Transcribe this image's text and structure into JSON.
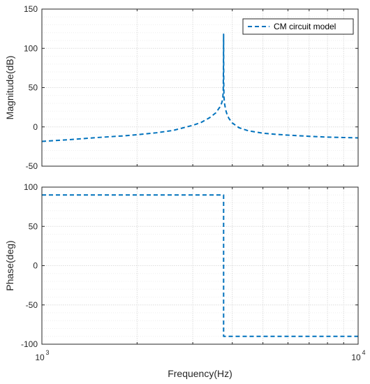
{
  "chart_data": [
    {
      "type": "line",
      "ylabel": "Magnitude(dB)",
      "xscale": "log",
      "xlim": [
        1000,
        10000
      ],
      "ylim": [
        -50,
        150
      ],
      "yticks": [
        -50,
        0,
        50,
        100,
        150
      ],
      "grid": true,
      "minor_grid": true,
      "legend": {
        "placement": "top-right",
        "entries": [
          "CM circuit model"
        ]
      },
      "series": [
        {
          "name": "CM circuit model",
          "color": "#0072BD",
          "style": "dashed",
          "x": [
            1000,
            1200,
            1500,
            1800,
            2000,
            2300,
            2600,
            3000,
            3200,
            3400,
            3550,
            3650,
            3700,
            3730,
            3745,
            3752,
            3755,
            3758,
            3765,
            3780,
            3810,
            3850,
            3900,
            4000,
            4200,
            4500,
            5000,
            5500,
            6000,
            7000,
            8000,
            9000,
            10000
          ],
          "y": [
            -18.5,
            -16.5,
            -13.5,
            -11.5,
            -10,
            -7.5,
            -4.5,
            2,
            6,
            12,
            18,
            25,
            30,
            35,
            45,
            80,
            118,
            60,
            38,
            30,
            22,
            16,
            11,
            5,
            -1,
            -5,
            -8,
            -9.5,
            -10.5,
            -12,
            -13,
            -13.5,
            -14
          ]
        }
      ]
    },
    {
      "type": "line",
      "xlabel": "Frequency(Hz)",
      "ylabel": "Phase(deg)",
      "xscale": "log",
      "xlim": [
        1000,
        10000
      ],
      "ylim": [
        -100,
        100
      ],
      "yticks": [
        -100,
        -50,
        0,
        50,
        100
      ],
      "grid": true,
      "minor_grid": true,
      "series": [
        {
          "name": "CM circuit model",
          "color": "#0072BD",
          "style": "dashed",
          "x": [
            1000,
            3755,
            3755,
            10000
          ],
          "y": [
            90,
            90,
            -90,
            -90
          ]
        }
      ]
    }
  ],
  "x_tick_labels": [
    {
      "base": "10",
      "exp": "3",
      "value": 1000
    },
    {
      "base": "10",
      "exp": "4",
      "value": 10000
    }
  ]
}
